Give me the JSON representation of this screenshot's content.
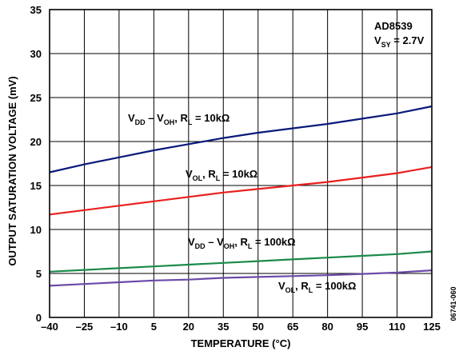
{
  "chart_data": {
    "type": "line",
    "xlabel": "TEMPERATURE (°C)",
    "ylabel": "OUTPUT SATURATION VOLTAGE (mV)",
    "xlim": [
      -40,
      125
    ],
    "ylim": [
      0,
      35
    ],
    "x_ticks": [
      -40,
      -25,
      -10,
      5,
      20,
      35,
      50,
      65,
      80,
      95,
      110,
      125
    ],
    "x_tick_labels": [
      "–40",
      "–25",
      "–10",
      "5",
      "20",
      "35",
      "50",
      "65",
      "80",
      "95",
      "110",
      "125"
    ],
    "y_ticks": [
      0,
      5,
      10,
      15,
      20,
      25,
      30,
      35
    ],
    "y_tick_labels": [
      "0",
      "5",
      "10",
      "15",
      "20",
      "25",
      "30",
      "35"
    ],
    "grid": true,
    "annotation": {
      "line1": "AD8539",
      "line2": {
        "main": "V",
        "sub": "SY",
        "rest": " = 2.7V"
      }
    },
    "figure_id": "06741-060",
    "series": [
      {
        "color": "#0a1a7a",
        "label": [
          {
            "t": "V"
          },
          {
            "t": "DD",
            "sub": true
          },
          {
            "t": " – V"
          },
          {
            "t": "OH",
            "sub": true
          },
          {
            "t": ", R"
          },
          {
            "t": "L",
            "sub": true
          },
          {
            "t": " = 10kΩ"
          }
        ],
        "x": [
          -40,
          -25,
          -10,
          5,
          20,
          35,
          50,
          65,
          80,
          95,
          110,
          125
        ],
        "y": [
          16.5,
          17.4,
          18.2,
          19.0,
          19.7,
          20.4,
          21.0,
          21.5,
          22.0,
          22.6,
          23.2,
          24.0
        ]
      },
      {
        "color": "#e8201e",
        "label": [
          {
            "t": "V"
          },
          {
            "t": "OL",
            "sub": true
          },
          {
            "t": ", R"
          },
          {
            "t": "L",
            "sub": true
          },
          {
            "t": " = 10kΩ"
          }
        ],
        "x": [
          -40,
          -25,
          -10,
          5,
          20,
          35,
          50,
          65,
          80,
          95,
          110,
          125
        ],
        "y": [
          11.7,
          12.2,
          12.7,
          13.2,
          13.7,
          14.2,
          14.6,
          15.0,
          15.4,
          15.9,
          16.4,
          17.1
        ]
      },
      {
        "color": "#1a8a4a",
        "label": [
          {
            "t": "V"
          },
          {
            "t": "DD",
            "sub": true
          },
          {
            "t": " – V"
          },
          {
            "t": "OH",
            "sub": true
          },
          {
            "t": ", R"
          },
          {
            "t": "L",
            "sub": true
          },
          {
            "t": " = 100kΩ"
          }
        ],
        "x": [
          -40,
          -25,
          -10,
          5,
          20,
          35,
          50,
          65,
          80,
          95,
          110,
          125
        ],
        "y": [
          5.2,
          5.4,
          5.6,
          5.8,
          6.0,
          6.2,
          6.4,
          6.6,
          6.8,
          7.0,
          7.2,
          7.5
        ]
      },
      {
        "color": "#6a4aa8",
        "label": [
          {
            "t": "V"
          },
          {
            "t": "OL",
            "sub": true
          },
          {
            "t": ", R"
          },
          {
            "t": "L",
            "sub": true
          },
          {
            "t": " = 100kΩ"
          }
        ],
        "x": [
          -40,
          -25,
          -10,
          5,
          20,
          35,
          50,
          65,
          80,
          95,
          110,
          125
        ],
        "y": [
          3.6,
          3.8,
          4.0,
          4.2,
          4.3,
          4.5,
          4.6,
          4.7,
          4.8,
          4.95,
          5.1,
          5.35
        ]
      }
    ]
  }
}
